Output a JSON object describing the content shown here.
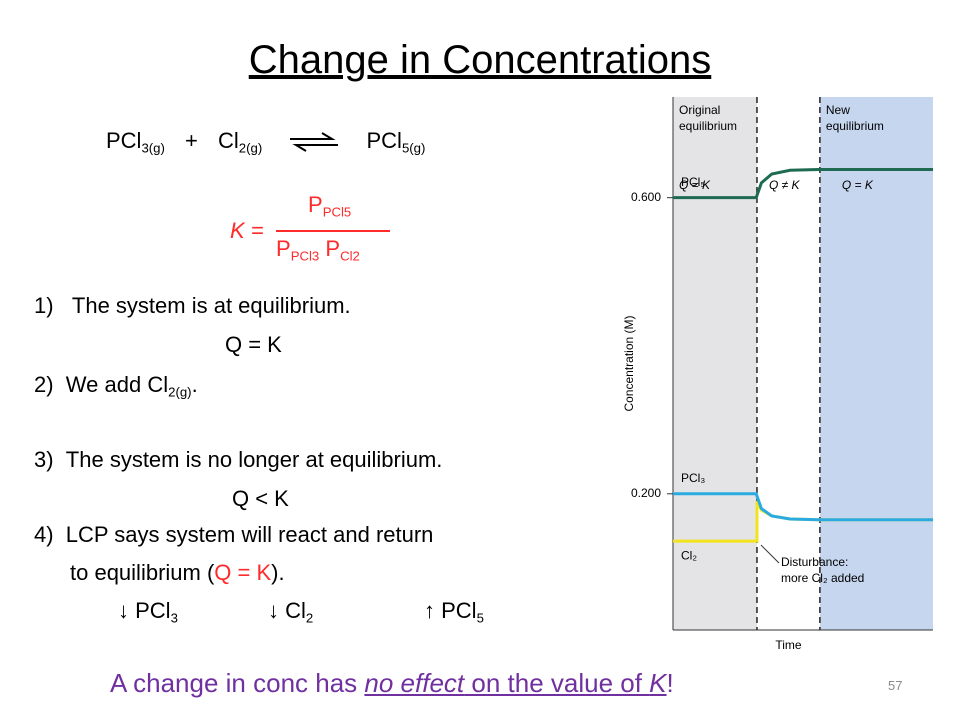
{
  "title": "Change in Concentrations",
  "reaction": {
    "terms": [
      {
        "text": "PCl",
        "sub": "3(g)"
      },
      {
        "text": "Cl",
        "sub": "2(g)"
      },
      {
        "text": "PCl",
        "sub": "5(g)"
      }
    ],
    "plus": "+"
  },
  "k_expression": {
    "lhs": "K =",
    "numerator": {
      "text": "P",
      "sub": "PCl5"
    },
    "denominator": [
      {
        "text": "P",
        "sub": "PCl3"
      },
      {
        "text": "P",
        "sub": "Cl2"
      }
    ]
  },
  "steps": [
    {
      "number": "1)",
      "text": "The system is at equilibrium.",
      "note": "Q = K"
    },
    {
      "number": "2)",
      "text": "We add Cl",
      "sub": "2(g)",
      "after": "."
    },
    {
      "number": "3)",
      "text": "The system is no longer at equilibrium.",
      "note": "Q < K"
    },
    {
      "number": "4)",
      "text": "LCP says system will react and return",
      "line2": "to equilibrium (",
      "line2_red": "Q = K",
      "line2_end": ")."
    }
  ],
  "shifts": [
    {
      "arrow": "↓",
      "text": "PCl",
      "sub": "3"
    },
    {
      "arrow": "↓",
      "text": "Cl",
      "sub": "2"
    },
    {
      "arrow": "↑",
      "text": "PCl",
      "sub": "5"
    }
  ],
  "footer": {
    "parts": [
      "A change in conc has ",
      "no effect",
      " on the value of ",
      "K",
      "!"
    ]
  },
  "page_number": "57",
  "chart_data": {
    "type": "line",
    "xlabel": "Time",
    "ylabel": "Concentration (M)",
    "xlim": [
      0,
      10
    ],
    "ylim": [
      0.016,
      0.736
    ],
    "yticks": [
      {
        "value": 0.6,
        "label": "0.600"
      },
      {
        "value": 0.2,
        "label": "0.200"
      }
    ],
    "regions": [
      {
        "label": [
          "Original",
          "equilibrium"
        ],
        "xlim": [
          0,
          3.23
        ],
        "color": "#e4e4e6"
      },
      {
        "label": [
          "New",
          "equilibrium"
        ],
        "xlim": [
          5.65,
          10
        ],
        "color": "#c6d6ef"
      }
    ],
    "status_labels": [
      "Q = K",
      "Q ≠ K",
      "Q = K"
    ],
    "disturbance": [
      "Disturbance:",
      "more Cl₂ added"
    ],
    "series": [
      {
        "name": "Cl₂",
        "color": "#f2e41c",
        "x": [
          0,
          3.23,
          3.23,
          3.4,
          3.8,
          4.5,
          5.6,
          10
        ],
        "values": [
          0.136,
          0.136,
          0.19,
          0.178,
          0.17,
          0.166,
          0.165,
          0.165
        ]
      },
      {
        "name": "PCl₃",
        "color": "#29abe2",
        "x": [
          0,
          3.2,
          3.4,
          3.8,
          4.5,
          5.6,
          10
        ],
        "values": [
          0.2,
          0.2,
          0.18,
          0.17,
          0.166,
          0.165,
          0.165
        ]
      },
      {
        "name": "PCl₅",
        "color": "#1e6b52",
        "x": [
          0,
          3.2,
          3.4,
          3.8,
          4.5,
          5.6,
          10
        ],
        "values": [
          0.6,
          0.6,
          0.62,
          0.632,
          0.637,
          0.638,
          0.638
        ]
      }
    ]
  }
}
